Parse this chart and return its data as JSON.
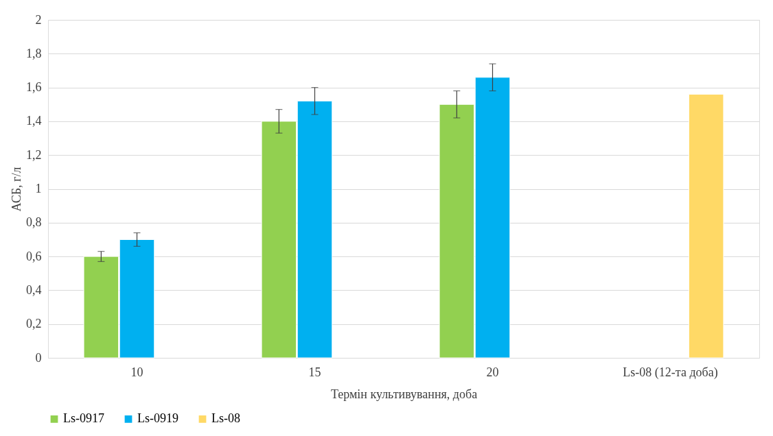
{
  "chart_data": {
    "type": "bar",
    "xlabel": "Термін культивування, доба",
    "ylabel": "АСБ, г/л",
    "categories": [
      "10",
      "15",
      "20",
      "Ls-08 (12-та доба)"
    ],
    "series": [
      {
        "name": "Ls-0917",
        "color": "#92d050",
        "values": [
          0.6,
          1.4,
          1.5,
          null
        ],
        "errors": [
          0.03,
          0.07,
          0.08,
          null
        ]
      },
      {
        "name": "Ls-0919",
        "color": "#00b0f0",
        "values": [
          0.7,
          1.52,
          1.66,
          null
        ],
        "errors": [
          0.04,
          0.08,
          0.08,
          null
        ]
      },
      {
        "name": "Ls-08",
        "color": "#ffd966",
        "values": [
          null,
          null,
          null,
          1.56
        ]
      }
    ],
    "ylim": [
      0,
      2
    ],
    "yticks": [
      0,
      {
        "value": 0.2,
        "label": "0,2"
      },
      {
        "value": 0.4,
        "label": "0,4"
      },
      {
        "value": 0.6,
        "label": "0,6"
      },
      {
        "value": 0.8,
        "label": "0,8"
      },
      1,
      {
        "value": 1.2,
        "label": "1,2"
      },
      {
        "value": 1.4,
        "label": "1,4"
      },
      {
        "value": 1.6,
        "label": "1,6"
      },
      {
        "value": 1.8,
        "label": "1,8"
      },
      2
    ],
    "grid": "y",
    "legend": "bottom"
  }
}
